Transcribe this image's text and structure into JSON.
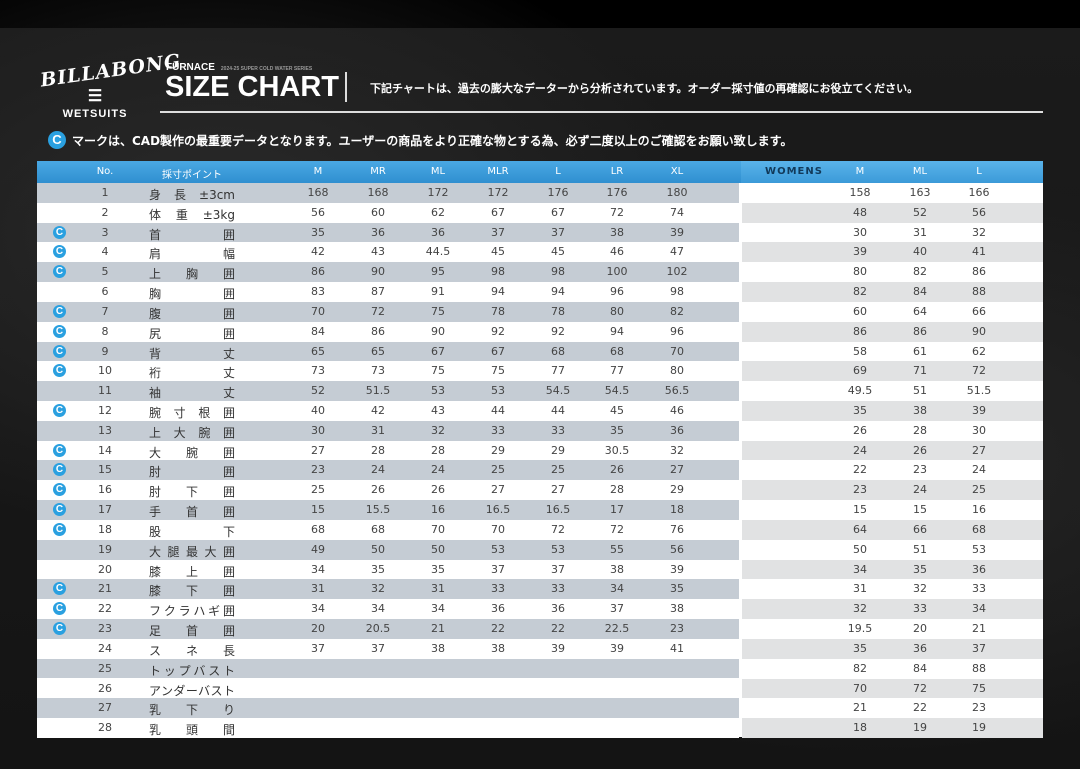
{
  "brand": {
    "logo_text": "BILLABONG",
    "sub": "WETSUITS",
    "series": "FURNACE",
    "series_sub": "2024-25 SUPER COLD WATER SERIES",
    "title": "SIZE CHART"
  },
  "note1": "下記チャートは、過去の膨大なデーターから分析されています。オーダー採寸値の再確認にお役立てください。",
  "note2": "マークは、CAD製作の最重要データとなります。ユーザーの商品をより正確な物とする為、必ず二度以上のご確認をお願い致します。",
  "cad_icon": "C",
  "colors": {
    "header": "#3a9ad9",
    "cad_mark": "#2aa0e0",
    "stripe": "#c5ccd4"
  },
  "headers": {
    "no": "No.",
    "point": "採寸ポイント",
    "mens": [
      "M",
      "MR",
      "ML",
      "MLR",
      "L",
      "LR",
      "XL"
    ],
    "womens_label": "WOMENS",
    "womens": [
      "M",
      "ML",
      "L"
    ]
  },
  "rows": [
    {
      "no": "1",
      "label": "身長±3cm",
      "cad": false,
      "mens": [
        "168",
        "168",
        "172",
        "172",
        "176",
        "176",
        "180"
      ],
      "womens": [
        "158",
        "163",
        "166"
      ]
    },
    {
      "no": "2",
      "label": "体重±3kg",
      "cad": false,
      "mens": [
        "56",
        "60",
        "62",
        "67",
        "67",
        "72",
        "74"
      ],
      "womens": [
        "48",
        "52",
        "56"
      ]
    },
    {
      "no": "3",
      "label": "首囲",
      "cad": true,
      "mens": [
        "35",
        "36",
        "36",
        "37",
        "37",
        "38",
        "39"
      ],
      "womens": [
        "30",
        "31",
        "32"
      ]
    },
    {
      "no": "4",
      "label": "肩幅",
      "cad": true,
      "mens": [
        "42",
        "43",
        "44.5",
        "45",
        "45",
        "46",
        "47"
      ],
      "womens": [
        "39",
        "40",
        "41"
      ]
    },
    {
      "no": "5",
      "label": "上胸囲",
      "cad": true,
      "mens": [
        "86",
        "90",
        "95",
        "98",
        "98",
        "100",
        "102"
      ],
      "womens": [
        "80",
        "82",
        "86"
      ]
    },
    {
      "no": "6",
      "label": "胸囲",
      "cad": false,
      "mens": [
        "83",
        "87",
        "91",
        "94",
        "94",
        "96",
        "98"
      ],
      "womens": [
        "82",
        "84",
        "88"
      ]
    },
    {
      "no": "7",
      "label": "腹囲",
      "cad": true,
      "mens": [
        "70",
        "72",
        "75",
        "78",
        "78",
        "80",
        "82"
      ],
      "womens": [
        "60",
        "64",
        "66"
      ]
    },
    {
      "no": "8",
      "label": "尻囲",
      "cad": true,
      "mens": [
        "84",
        "86",
        "90",
        "92",
        "92",
        "94",
        "96"
      ],
      "womens": [
        "86",
        "86",
        "90"
      ]
    },
    {
      "no": "9",
      "label": "背丈",
      "cad": true,
      "mens": [
        "65",
        "65",
        "67",
        "67",
        "68",
        "68",
        "70"
      ],
      "womens": [
        "58",
        "61",
        "62"
      ]
    },
    {
      "no": "10",
      "label": "裄丈",
      "cad": true,
      "mens": [
        "73",
        "73",
        "75",
        "75",
        "77",
        "77",
        "80"
      ],
      "womens": [
        "69",
        "71",
        "72"
      ]
    },
    {
      "no": "11",
      "label": "袖丈",
      "cad": false,
      "mens": [
        "52",
        "51.5",
        "53",
        "53",
        "54.5",
        "54.5",
        "56.5"
      ],
      "womens": [
        "49.5",
        "51",
        "51.5"
      ]
    },
    {
      "no": "12",
      "label": "腕寸根囲",
      "cad": true,
      "mens": [
        "40",
        "42",
        "43",
        "44",
        "44",
        "45",
        "46"
      ],
      "womens": [
        "35",
        "38",
        "39"
      ]
    },
    {
      "no": "13",
      "label": "上大腕囲",
      "cad": false,
      "mens": [
        "30",
        "31",
        "32",
        "33",
        "33",
        "35",
        "36"
      ],
      "womens": [
        "26",
        "28",
        "30"
      ]
    },
    {
      "no": "14",
      "label": "大腕囲",
      "cad": true,
      "mens": [
        "27",
        "28",
        "28",
        "29",
        "29",
        "30.5",
        "32"
      ],
      "womens": [
        "24",
        "26",
        "27"
      ]
    },
    {
      "no": "15",
      "label": "肘囲",
      "cad": true,
      "mens": [
        "23",
        "24",
        "24",
        "25",
        "25",
        "26",
        "27"
      ],
      "womens": [
        "22",
        "23",
        "24"
      ]
    },
    {
      "no": "16",
      "label": "肘下囲",
      "cad": true,
      "mens": [
        "25",
        "26",
        "26",
        "27",
        "27",
        "28",
        "29"
      ],
      "womens": [
        "23",
        "24",
        "25"
      ]
    },
    {
      "no": "17",
      "label": "手首囲",
      "cad": true,
      "mens": [
        "15",
        "15.5",
        "16",
        "16.5",
        "16.5",
        "17",
        "18"
      ],
      "womens": [
        "15",
        "15",
        "16"
      ]
    },
    {
      "no": "18",
      "label": "股下",
      "cad": true,
      "mens": [
        "68",
        "68",
        "70",
        "70",
        "72",
        "72",
        "76"
      ],
      "womens": [
        "64",
        "66",
        "68"
      ]
    },
    {
      "no": "19",
      "label": "大腿最大囲",
      "cad": false,
      "mens": [
        "49",
        "50",
        "50",
        "53",
        "53",
        "55",
        "56"
      ],
      "womens": [
        "50",
        "51",
        "53"
      ]
    },
    {
      "no": "20",
      "label": "膝上囲",
      "cad": false,
      "mens": [
        "34",
        "35",
        "35",
        "37",
        "37",
        "38",
        "39"
      ],
      "womens": [
        "34",
        "35",
        "36"
      ]
    },
    {
      "no": "21",
      "label": "膝下囲",
      "cad": true,
      "mens": [
        "31",
        "32",
        "31",
        "33",
        "33",
        "34",
        "35"
      ],
      "womens": [
        "31",
        "32",
        "33"
      ]
    },
    {
      "no": "22",
      "label": "フクラハギ囲",
      "cad": true,
      "mens": [
        "34",
        "34",
        "34",
        "36",
        "36",
        "37",
        "38"
      ],
      "womens": [
        "32",
        "33",
        "34"
      ]
    },
    {
      "no": "23",
      "label": "足首囲",
      "cad": true,
      "mens": [
        "20",
        "20.5",
        "21",
        "22",
        "22",
        "22.5",
        "23"
      ],
      "womens": [
        "19.5",
        "20",
        "21"
      ]
    },
    {
      "no": "24",
      "label": "スネ長",
      "cad": false,
      "mens": [
        "37",
        "37",
        "38",
        "38",
        "39",
        "39",
        "41"
      ],
      "womens": [
        "35",
        "36",
        "37"
      ]
    },
    {
      "no": "25",
      "label": "トップバスト",
      "cad": false,
      "mens": [],
      "womens": [
        "82",
        "84",
        "88"
      ]
    },
    {
      "no": "26",
      "label": "アンダーバスト",
      "cad": false,
      "mens": [],
      "womens": [
        "70",
        "72",
        "75"
      ]
    },
    {
      "no": "27",
      "label": "乳下り",
      "cad": false,
      "mens": [],
      "womens": [
        "21",
        "22",
        "23"
      ]
    },
    {
      "no": "28",
      "label": "乳頭間",
      "cad": false,
      "mens": [],
      "womens": [
        "18",
        "19",
        "19"
      ]
    }
  ]
}
